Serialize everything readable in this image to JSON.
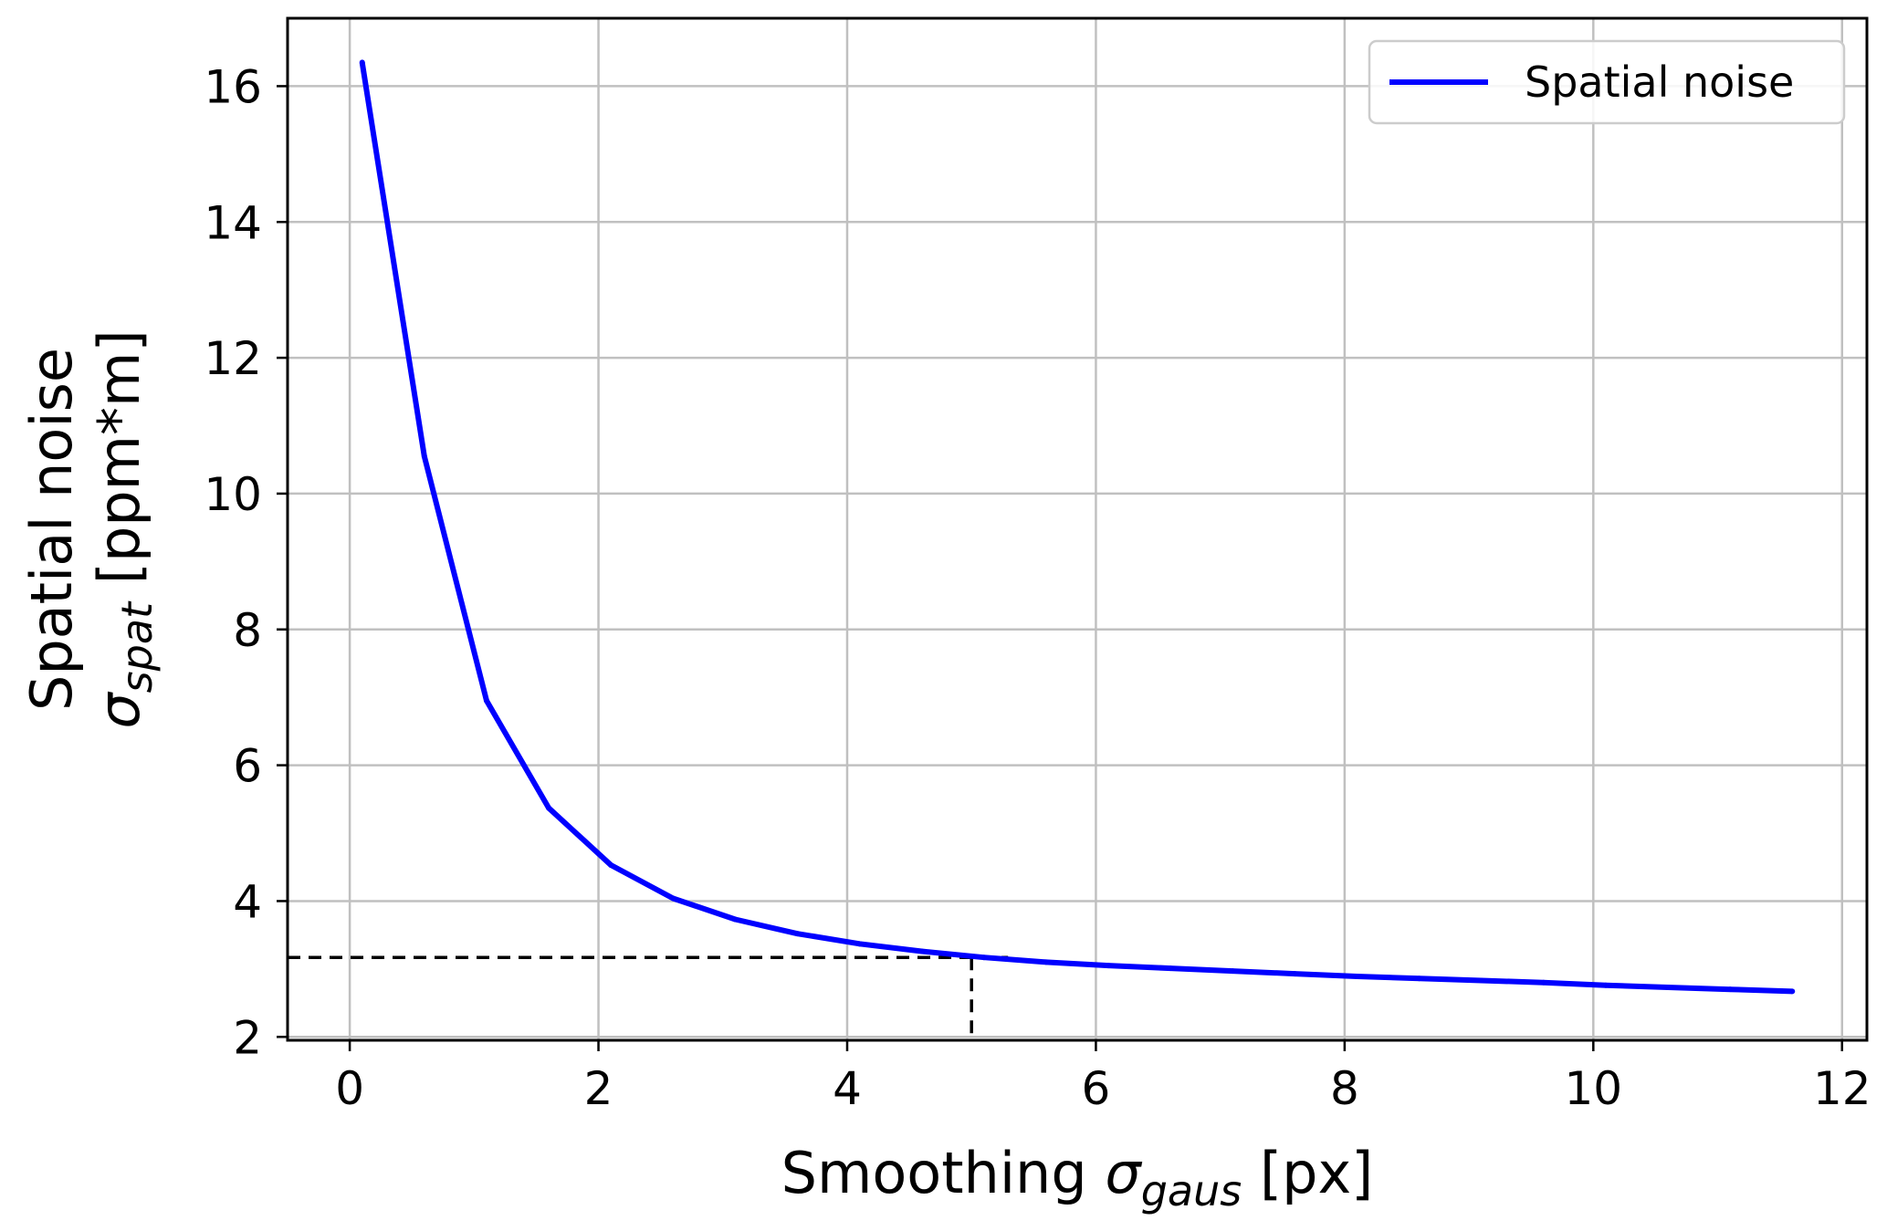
{
  "chart_data": {
    "type": "line",
    "title": "",
    "xlabel": {
      "prefix": "Smoothing ",
      "symbol": "σ",
      "subscript": "gaus",
      "suffix": " [px]"
    },
    "ylabel": {
      "line1": "Spatial noise",
      "symbol": "σ",
      "subscript": "spat",
      "suffix": " [ppm*m]"
    },
    "xlim": [
      -0.5,
      12.2
    ],
    "ylim": [
      1.95,
      17
    ],
    "xticks": [
      0,
      2,
      4,
      6,
      8,
      10,
      12
    ],
    "yticks": [
      2,
      4,
      6,
      8,
      10,
      12,
      14,
      16
    ],
    "grid": true,
    "legend_position": "top-right",
    "series": [
      {
        "name": "Spatial noise",
        "color": "#0000ff",
        "x": [
          0.1,
          0.6,
          1.1,
          1.6,
          2.1,
          2.6,
          3.1,
          3.6,
          4.1,
          4.6,
          5.1,
          5.6,
          6.1,
          6.6,
          7.1,
          7.6,
          8.1,
          8.6,
          9.1,
          9.6,
          10.1,
          10.6,
          11.1,
          11.6
        ],
        "y": [
          16.35,
          10.55,
          6.95,
          5.37,
          4.53,
          4.04,
          3.73,
          3.52,
          3.37,
          3.26,
          3.17,
          3.1,
          3.05,
          3.01,
          2.97,
          2.93,
          2.89,
          2.86,
          2.83,
          2.8,
          2.76,
          2.73,
          2.7,
          2.67
        ]
      }
    ],
    "annotations": [
      {
        "type": "dashed-guide",
        "color": "#000000",
        "x": 5.0,
        "y": 3.17
      }
    ]
  }
}
